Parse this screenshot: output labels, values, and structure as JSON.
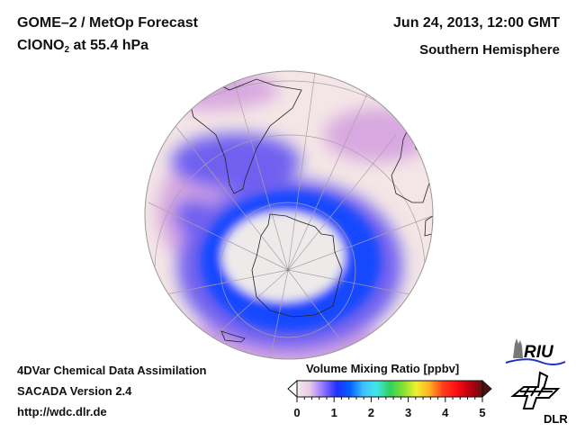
{
  "header": {
    "title": "GOME–2 / MetOp Forecast",
    "species_main": "ClONO",
    "species_sub": "2",
    "species_rest": " at 55.4 hPa",
    "date": "Jun 24, 2013, 12:00 GMT",
    "region": "Southern Hemisphere"
  },
  "footer": {
    "line1": "4DVar Chemical Data Assimilation",
    "line2": "SACADA Version 2.4",
    "line3": "http://wdc.dlr.de"
  },
  "colorbar": {
    "title": "Volume Mixing Ratio [ppbv]",
    "min": 0,
    "max": 5,
    "tick_labels": [
      "0",
      "1",
      "2",
      "3",
      "4",
      "5"
    ],
    "colors": [
      "#f2ecec",
      "#e8c8e8",
      "#9070ff",
      "#2030ff",
      "#0060ff",
      "#40c0ff",
      "#40e8e8",
      "#30d060",
      "#80e030",
      "#f0f030",
      "#ffb020",
      "#ff4020",
      "#ff1010",
      "#c00010",
      "#601010"
    ]
  },
  "map": {
    "projection": "orthographic south polar view",
    "field_colors": {
      "background": "#f4e6e6",
      "low": "#eeeaea",
      "mid": "#d8a8e0",
      "high": "#7060f0",
      "peak": "#1848ff"
    }
  },
  "logos": {
    "riu_text": "RIU",
    "dlr_text": "DLR"
  }
}
